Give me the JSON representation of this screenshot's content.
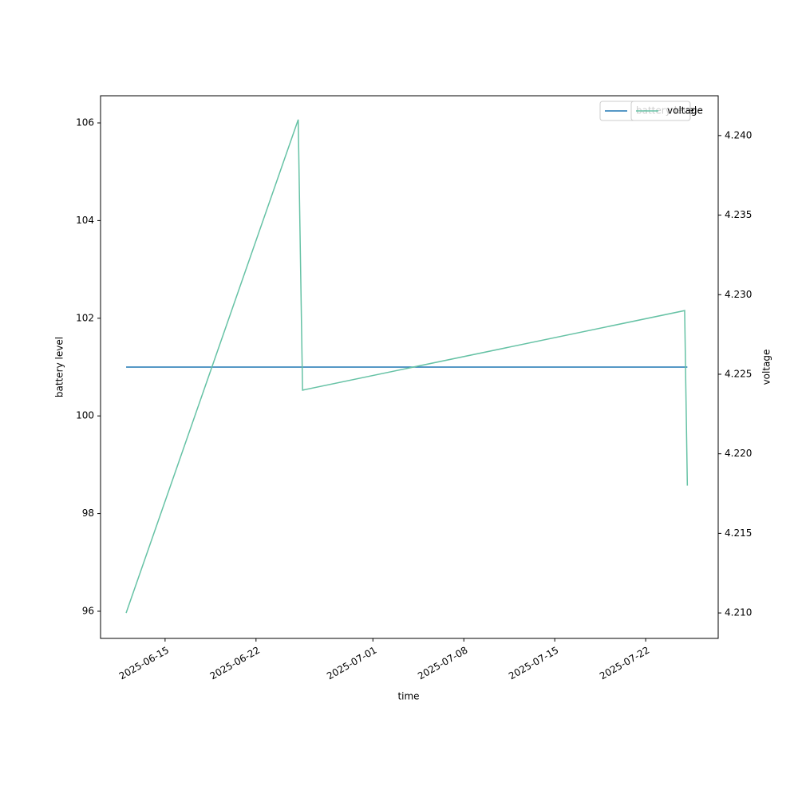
{
  "chart_data": {
    "type": "line",
    "x": [
      "2025-06-12T00:00",
      "2025-06-25T06:00",
      "2025-06-25T14:00",
      "2025-07-25T00:00",
      "2025-07-25T05:00"
    ],
    "xlabel": "time",
    "ylabel": "battery level",
    "y2label": "voltage",
    "series": [
      {
        "name": "battery level",
        "color": "#1f77b4",
        "values": [
          101,
          101,
          101,
          101,
          101
        ]
      },
      {
        "name": "voltage",
        "color": "#66c2a5",
        "axis": "y2",
        "values": [
          4.21,
          4.241,
          4.224,
          4.229,
          4.218
        ]
      }
    ],
    "xlim": [
      "2025-06-10T00:45",
      "2025-07-27T14:00"
    ],
    "xticks": [
      "2025-06-15",
      "2025-06-22",
      "2025-07-01",
      "2025-07-08",
      "2025-07-15",
      "2025-07-22"
    ],
    "ylim": [
      95.444,
      106.556
    ],
    "yticks": [
      96,
      98,
      100,
      102,
      104,
      106
    ],
    "y2lim": [
      4.2084,
      4.2425
    ],
    "y2ticks": [
      {
        "value": 4.21,
        "label": "4.210"
      },
      {
        "value": 4.215,
        "label": "4.215"
      },
      {
        "value": 4.22,
        "label": "4.220"
      },
      {
        "value": 4.225,
        "label": "4.225"
      },
      {
        "value": 4.23,
        "label": "4.230"
      },
      {
        "value": 4.235,
        "label": "4.235"
      },
      {
        "value": 4.24,
        "label": "4.240"
      }
    ],
    "legend": "upper right"
  }
}
